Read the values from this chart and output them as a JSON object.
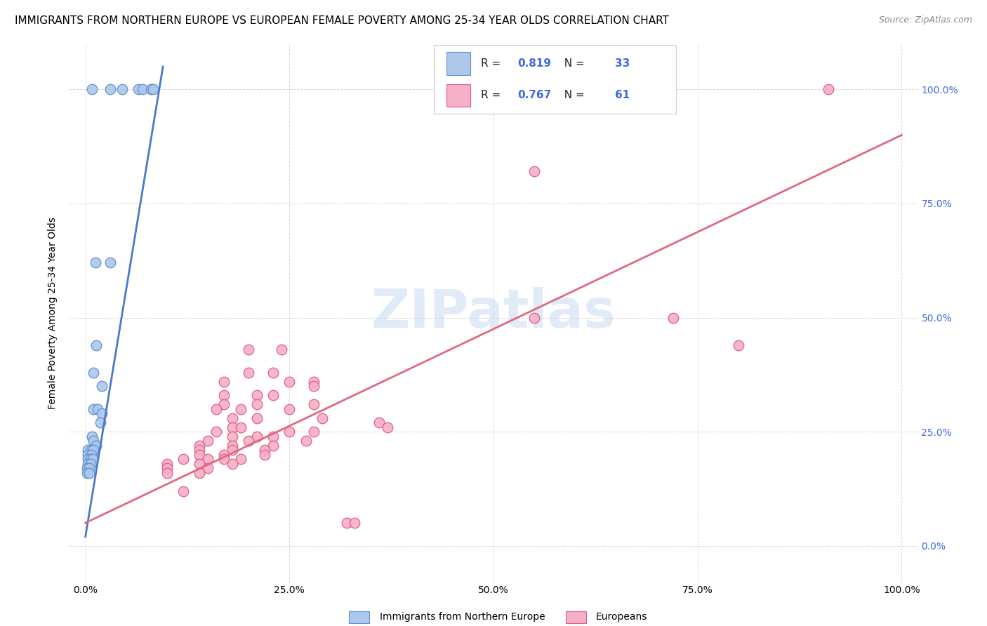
{
  "title": "IMMIGRANTS FROM NORTHERN EUROPE VS EUROPEAN FEMALE POVERTY AMONG 25-34 YEAR OLDS CORRELATION CHART",
  "source": "Source: ZipAtlas.com",
  "ylabel": "Female Poverty Among 25-34 Year Olds",
  "watermark": "ZIPatlas",
  "blue_R": 0.819,
  "blue_N": 33,
  "pink_R": 0.767,
  "pink_N": 61,
  "blue_color": "#adc8ea",
  "pink_color": "#f5afc8",
  "blue_edge_color": "#6090d0",
  "pink_edge_color": "#e06080",
  "blue_line_color": "#4878d0",
  "pink_line_color": "#e06880",
  "right_axis_color": "#4169E1",
  "legend_label_blue": "Immigrants from Northern Europe",
  "legend_label_pink": "Europeans",
  "blue_scatter": [
    [
      0.008,
      1.0
    ],
    [
      0.03,
      1.0
    ],
    [
      0.045,
      1.0
    ],
    [
      0.065,
      1.0
    ],
    [
      0.07,
      1.0
    ],
    [
      0.08,
      1.0
    ],
    [
      0.083,
      1.0
    ],
    [
      0.012,
      0.62
    ],
    [
      0.03,
      0.62
    ],
    [
      0.013,
      0.44
    ],
    [
      0.01,
      0.38
    ],
    [
      0.02,
      0.35
    ],
    [
      0.01,
      0.3
    ],
    [
      0.015,
      0.3
    ],
    [
      0.02,
      0.29
    ],
    [
      0.018,
      0.27
    ],
    [
      0.008,
      0.24
    ],
    [
      0.01,
      0.23
    ],
    [
      0.013,
      0.22
    ],
    [
      0.003,
      0.21
    ],
    [
      0.007,
      0.21
    ],
    [
      0.01,
      0.21
    ],
    [
      0.003,
      0.2
    ],
    [
      0.007,
      0.2
    ],
    [
      0.003,
      0.19
    ],
    [
      0.006,
      0.19
    ],
    [
      0.009,
      0.19
    ],
    [
      0.003,
      0.18
    ],
    [
      0.006,
      0.18
    ],
    [
      0.002,
      0.17
    ],
    [
      0.005,
      0.17
    ],
    [
      0.002,
      0.16
    ],
    [
      0.005,
      0.16
    ]
  ],
  "pink_scatter": [
    [
      0.91,
      1.0
    ],
    [
      0.55,
      0.82
    ],
    [
      0.55,
      0.5
    ],
    [
      0.72,
      0.5
    ],
    [
      0.8,
      0.44
    ],
    [
      0.2,
      0.43
    ],
    [
      0.24,
      0.43
    ],
    [
      0.2,
      0.38
    ],
    [
      0.23,
      0.38
    ],
    [
      0.17,
      0.36
    ],
    [
      0.25,
      0.36
    ],
    [
      0.28,
      0.36
    ],
    [
      0.28,
      0.35
    ],
    [
      0.17,
      0.33
    ],
    [
      0.21,
      0.33
    ],
    [
      0.23,
      0.33
    ],
    [
      0.17,
      0.31
    ],
    [
      0.21,
      0.31
    ],
    [
      0.28,
      0.31
    ],
    [
      0.16,
      0.3
    ],
    [
      0.19,
      0.3
    ],
    [
      0.25,
      0.3
    ],
    [
      0.18,
      0.28
    ],
    [
      0.21,
      0.28
    ],
    [
      0.29,
      0.28
    ],
    [
      0.36,
      0.27
    ],
    [
      0.18,
      0.26
    ],
    [
      0.19,
      0.26
    ],
    [
      0.37,
      0.26
    ],
    [
      0.16,
      0.25
    ],
    [
      0.25,
      0.25
    ],
    [
      0.28,
      0.25
    ],
    [
      0.18,
      0.24
    ],
    [
      0.21,
      0.24
    ],
    [
      0.23,
      0.24
    ],
    [
      0.15,
      0.23
    ],
    [
      0.2,
      0.23
    ],
    [
      0.27,
      0.23
    ],
    [
      0.14,
      0.22
    ],
    [
      0.18,
      0.22
    ],
    [
      0.23,
      0.22
    ],
    [
      0.14,
      0.21
    ],
    [
      0.18,
      0.21
    ],
    [
      0.22,
      0.21
    ],
    [
      0.14,
      0.2
    ],
    [
      0.17,
      0.2
    ],
    [
      0.22,
      0.2
    ],
    [
      0.12,
      0.19
    ],
    [
      0.15,
      0.19
    ],
    [
      0.17,
      0.19
    ],
    [
      0.19,
      0.19
    ],
    [
      0.1,
      0.18
    ],
    [
      0.14,
      0.18
    ],
    [
      0.18,
      0.18
    ],
    [
      0.1,
      0.17
    ],
    [
      0.15,
      0.17
    ],
    [
      0.1,
      0.16
    ],
    [
      0.14,
      0.16
    ],
    [
      0.12,
      0.12
    ],
    [
      0.32,
      0.05
    ],
    [
      0.33,
      0.05
    ]
  ],
  "blue_line_x0": 0.0,
  "blue_line_x1": 0.095,
  "blue_line_y0": 0.02,
  "blue_line_y1": 1.05,
  "pink_line_x0": 0.0,
  "pink_line_x1": 1.0,
  "pink_line_y0": 0.05,
  "pink_line_y1": 0.9,
  "xlim": [
    -0.02,
    1.02
  ],
  "ylim": [
    -0.08,
    1.1
  ],
  "xticks": [
    0.0,
    0.25,
    0.5,
    0.75,
    1.0
  ],
  "yticks_right": [
    0.0,
    0.25,
    0.5,
    0.75,
    1.0
  ],
  "grid_color": "#d8d8d8",
  "background_color": "#ffffff",
  "title_fontsize": 11,
  "source_fontsize": 9
}
